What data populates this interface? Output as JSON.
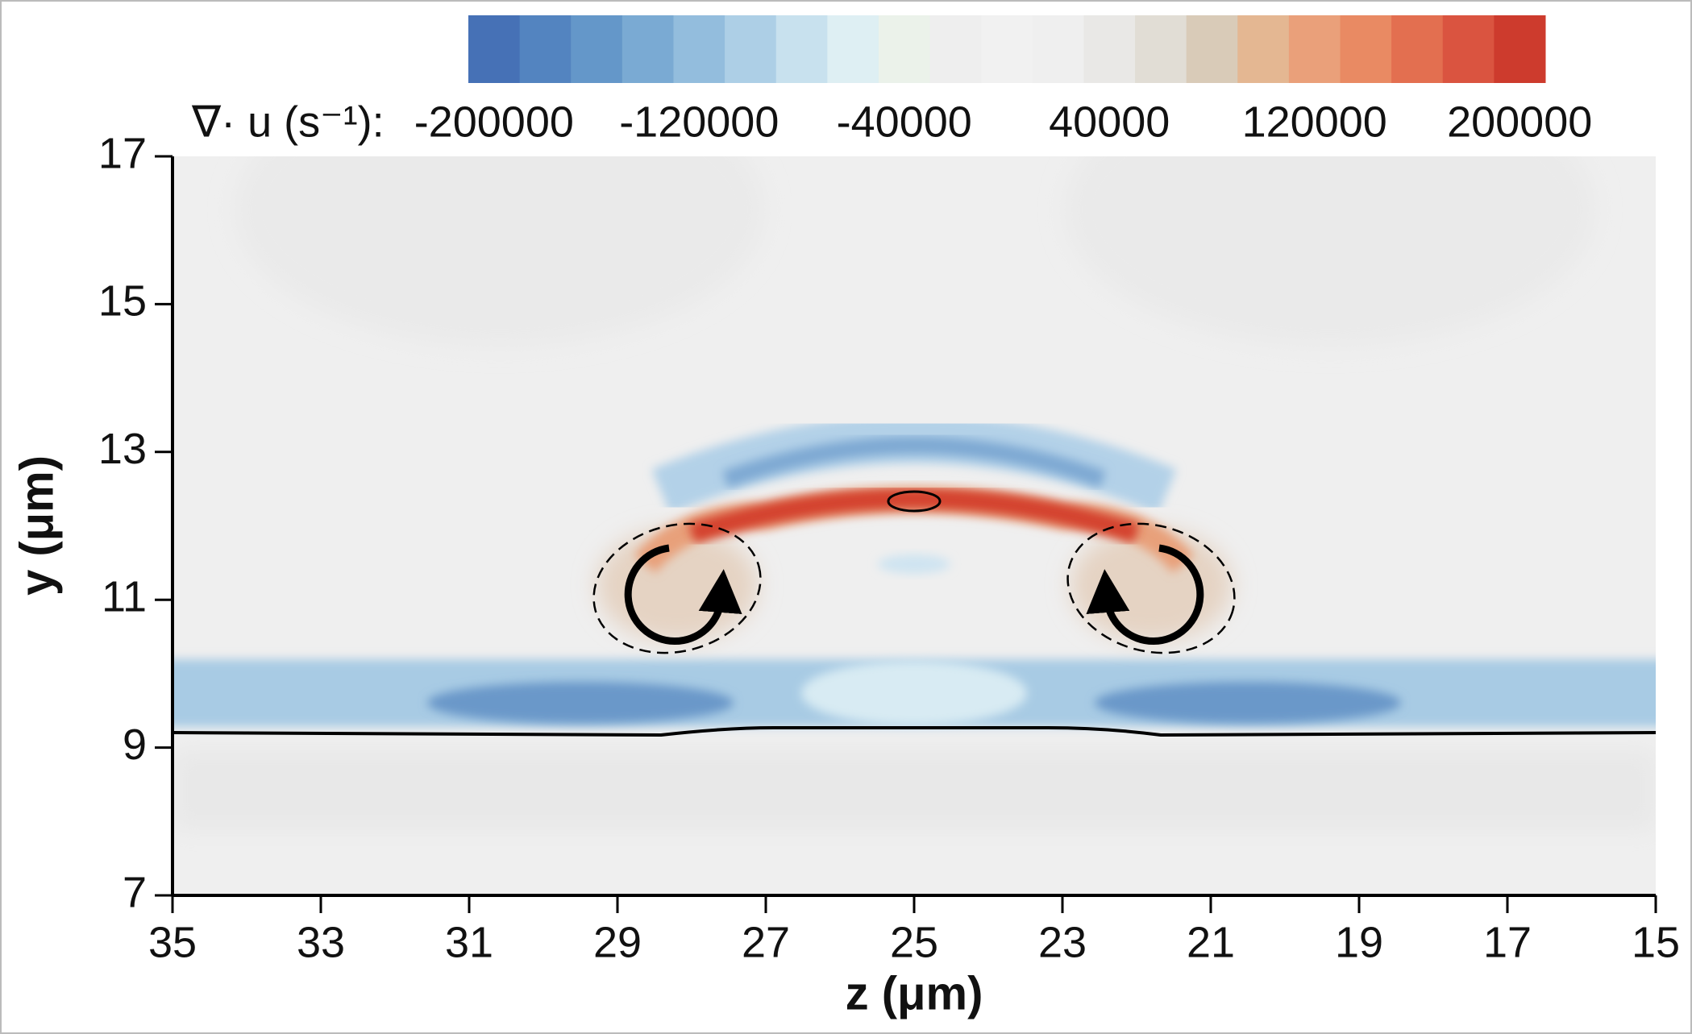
{
  "chart_data": {
    "type": "contour",
    "xlabel": "z (μm)",
    "ylabel": "y (μm)",
    "xlim": [
      35,
      15
    ],
    "xticks": [
      35,
      33,
      31,
      29,
      27,
      25,
      23,
      21,
      19,
      17,
      15
    ],
    "ylim": [
      7,
      17
    ],
    "yticks": [
      7,
      9,
      11,
      13,
      15,
      17
    ],
    "colorbar_label": "∇· u (s⁻¹):",
    "clim": [
      -210000,
      210000
    ],
    "colorbar_ticks": [
      -200000,
      -120000,
      -40000,
      40000,
      120000,
      200000
    ],
    "colorbar_colors": [
      "#4671b6",
      "#5384c0",
      "#6497c9",
      "#7aaad3",
      "#93bddd",
      "#adcfe6",
      "#c8e1ee",
      "#deeff3",
      "#ebf2ea",
      "#eeeeee",
      "#f1f1f1",
      "#efefef",
      "#e9e8e6",
      "#e1ddd5",
      "#d9cbb8",
      "#e4b792",
      "#eaa07a",
      "#e98a63",
      "#e36f50",
      "#da5440",
      "#cd3b2d"
    ]
  }
}
